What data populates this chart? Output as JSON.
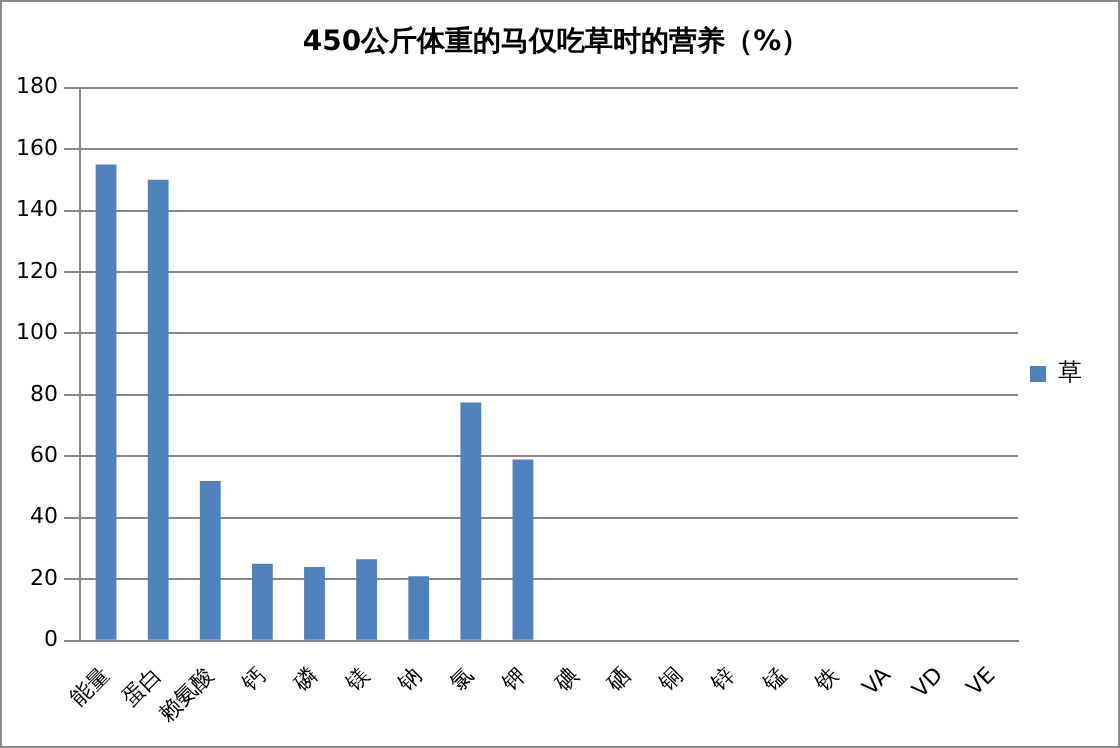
{
  "chart_data": {
    "type": "bar",
    "title": "450公斤体重的马仅吃草时的营养（%）",
    "categories": [
      "能量",
      "蛋白",
      "赖氨酸",
      "钙",
      "磷",
      "镁",
      "钠",
      "氯",
      "钾",
      "碘",
      "硒",
      "铜",
      "锌",
      "锰",
      "铁",
      "VA",
      "VD",
      "VE"
    ],
    "series": [
      {
        "name": "草",
        "color": "#4f81bd",
        "values": [
          155,
          150,
          52,
          25,
          24,
          26.5,
          21,
          77.5,
          59,
          null,
          null,
          null,
          null,
          null,
          null,
          null,
          null,
          null
        ]
      }
    ],
    "ylim": [
      0,
      180
    ],
    "yticks": [
      0,
      20,
      40,
      60,
      80,
      100,
      120,
      140,
      160,
      180
    ],
    "grid": "y",
    "legend": "right"
  }
}
